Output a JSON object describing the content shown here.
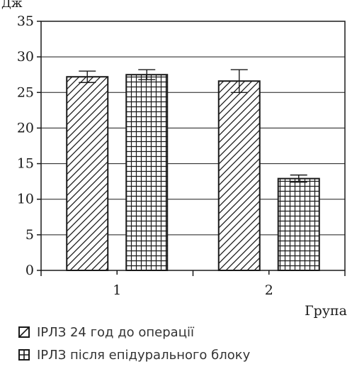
{
  "top_cut_label": "Дж",
  "chart_data": {
    "type": "bar",
    "categories": [
      "1",
      "2"
    ],
    "series": [
      {
        "name": "ІРЛЗ 24 год до операції",
        "pattern": "diagonal-hatch",
        "values": [
          27.2,
          26.6
        ],
        "errors": [
          0.8,
          1.6
        ]
      },
      {
        "name": "ІРЛЗ після епідурального блоку",
        "pattern": "grid-hatch",
        "values": [
          27.5,
          12.9
        ],
        "errors": [
          0.7,
          0.5
        ]
      }
    ],
    "xlabel": "Група",
    "ylabel": "",
    "ylim": [
      0,
      35
    ],
    "yticks": [
      0,
      5,
      10,
      15,
      20,
      25,
      30,
      35
    ],
    "grid": true,
    "legend_position": "bottom-left"
  }
}
